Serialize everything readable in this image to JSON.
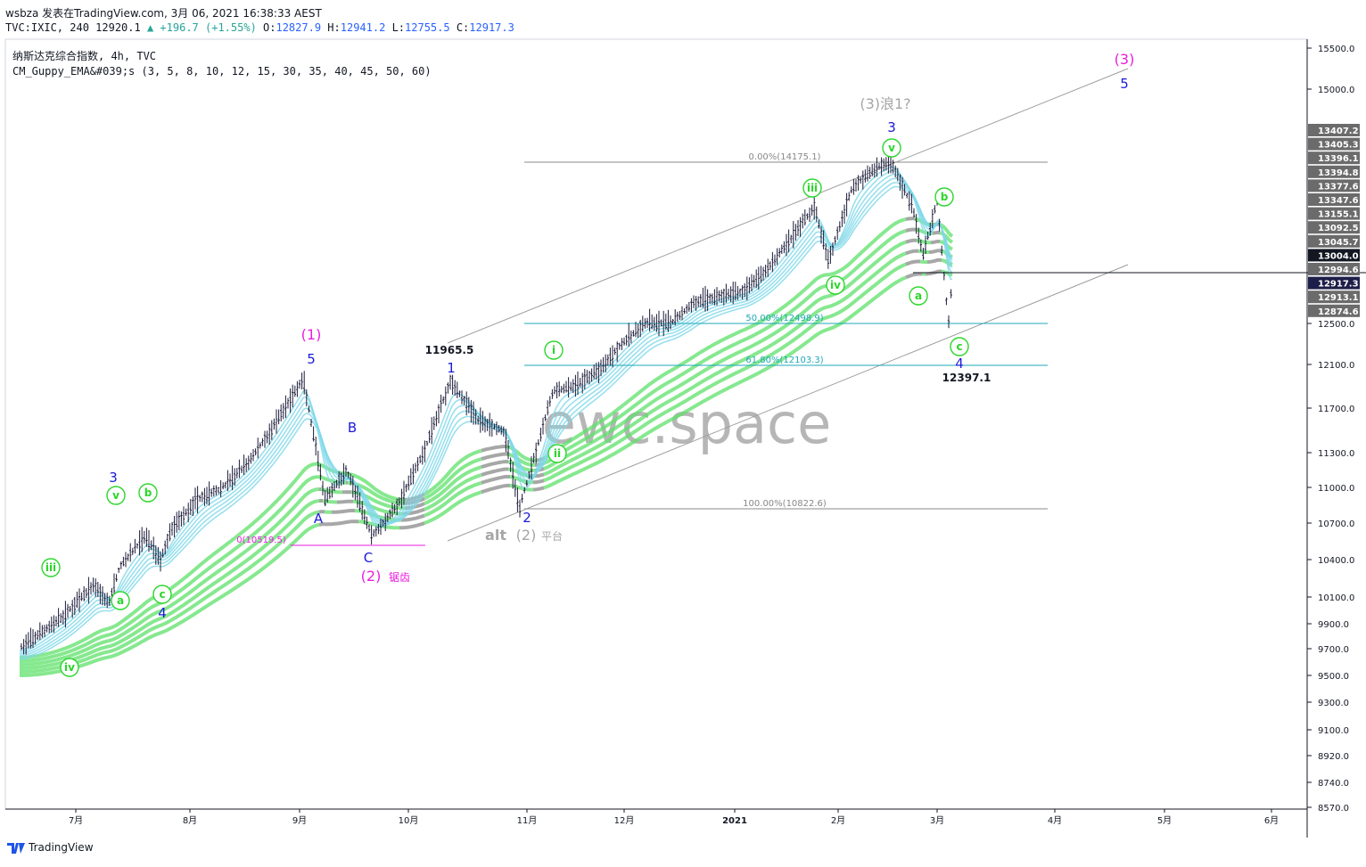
{
  "header": {
    "line1": "wsbza 发表在TradingView.com, 3月 06, 2021 16:38:33 AEST",
    "symbol": "TVC:IXIC, 240",
    "last": "12920.1",
    "change": "▲ +196.7 (+1.55%)",
    "o_label": "O:",
    "o": "12827.9",
    "h_label": "H:",
    "h": "12941.2",
    "l_label": "L:",
    "l": "12755.5",
    "c_label": "C:",
    "c": "12917.3"
  },
  "legend": {
    "title": "纳斯达克综合指数, 4h, TVC",
    "indicator": "CM_Guppy_EMA&#039;s (3, 5, 8, 10, 12, 15, 30, 35, 40, 45, 50, 60)"
  },
  "footer": {
    "brand": "TradingView"
  },
  "watermark": "ewc.space",
  "colors": {
    "candle": "#1b1b3a",
    "ema_short": "#7fd8e8",
    "ema_long": "#5ee06a",
    "ema_long_band": "#c8c8c8",
    "ema_bear": "#8a8a8a",
    "wave_magenta": "#e91ee0",
    "wave_blue": "#1a1adb",
    "wave_green": "#2bd62b",
    "fib": "#1fa8b8",
    "channel": "#9e9e9e"
  },
  "chart_data": {
    "type": "candlestick",
    "title": "纳斯达克综合指数",
    "timeframe": "4h",
    "ylim": [
      8570,
      15700
    ],
    "x_ticks": [
      "7月",
      "8月",
      "9月",
      "10月",
      "11月",
      "12月",
      "2021",
      "2月",
      "3月",
      "4月",
      "5月",
      "6月"
    ],
    "y_ticks": [
      "15500.0",
      "15000.0",
      "12500.0",
      "12100.0",
      "11700.0",
      "11300.0",
      "11000.0",
      "10700.0",
      "10400.0",
      "10100.0",
      "9900.0",
      "9700.0",
      "9500.0",
      "9300.0",
      "9100.0",
      "8920.0",
      "8740.0",
      "8570.0"
    ],
    "price_tags": [
      "13407.2",
      "13405.3",
      "13396.1",
      "13394.8",
      "13377.6",
      "13347.6",
      "13155.1",
      "13092.5",
      "13045.7",
      "13004.0",
      "12994.6",
      "12917.3",
      "12913.1",
      "12874.6"
    ],
    "current_price": "12917.3",
    "price_path": [
      [
        "2020-06-22",
        9700
      ],
      [
        "2020-06-29",
        9950
      ],
      [
        "2020-07-06",
        10200
      ],
      [
        "2020-07-10",
        10050
      ],
      [
        "2020-07-13",
        10350
      ],
      [
        "2020-07-20",
        10600
      ],
      [
        "2020-07-24",
        10400
      ],
      [
        "2020-07-27",
        10650
      ],
      [
        "2020-08-03",
        10900
      ],
      [
        "2020-08-10",
        11000
      ],
      [
        "2020-08-17",
        11200
      ],
      [
        "2020-08-24",
        11500
      ],
      [
        "2020-09-02",
        11965
      ],
      [
        "2020-09-08",
        10900
      ],
      [
        "2020-09-14",
        11150
      ],
      [
        "2020-09-21",
        10600
      ],
      [
        "2020-09-28",
        10850
      ],
      [
        "2020-10-05",
        11300
      ],
      [
        "2020-10-12",
        11950
      ],
      [
        "2020-10-19",
        11600
      ],
      [
        "2020-10-26",
        11500
      ],
      [
        "2020-10-30",
        10822
      ],
      [
        "2020-11-09",
        11850
      ],
      [
        "2020-11-16",
        11900
      ],
      [
        "2020-11-23",
        12050
      ],
      [
        "2020-11-30",
        12300
      ],
      [
        "2020-12-07",
        12500
      ],
      [
        "2020-12-14",
        12500
      ],
      [
        "2020-12-21",
        12700
      ],
      [
        "2021-01-04",
        12800
      ],
      [
        "2021-01-11",
        13000
      ],
      [
        "2021-01-25",
        13500
      ],
      [
        "2021-01-29",
        13050
      ],
      [
        "2021-02-05",
        13800
      ],
      [
        "2021-02-12",
        14100
      ],
      [
        "2021-02-16",
        14175
      ],
      [
        "2021-02-22",
        13500
      ],
      [
        "2021-02-25",
        13100
      ],
      [
        "2021-03-01",
        13600
      ],
      [
        "2021-03-04",
        12500
      ],
      [
        "2021-03-05",
        12917
      ]
    ],
    "fib_levels": [
      {
        "label": "0.00%(14175.1)",
        "value": 14175.1
      },
      {
        "label": "50.00%(12498.9)",
        "value": 12498.9
      },
      {
        "label": "61.80%(12103.3)",
        "value": 12103.3
      },
      {
        "label": "100.00%(10822.6)",
        "value": 10822.6
      },
      {
        "label": "0(10519.5)",
        "value": 10519.5
      }
    ],
    "annotations": {
      "major": [
        "(1)",
        "(2)",
        "锯齿",
        "(3)",
        "(3)浪1?",
        "alt",
        "(2)",
        "平台"
      ],
      "intermediate": [
        "1",
        "2",
        "3",
        "4",
        "5",
        "3",
        "4",
        "5",
        "A",
        "B",
        "C"
      ],
      "minor": [
        "i",
        "ii",
        "iii",
        "iv",
        "v",
        "a",
        "b",
        "c",
        "iii",
        "v",
        "iv",
        "a",
        "b",
        "c",
        "v",
        "a",
        "b",
        "c"
      ],
      "prices": [
        "11965.5",
        "12397.1"
      ]
    }
  }
}
